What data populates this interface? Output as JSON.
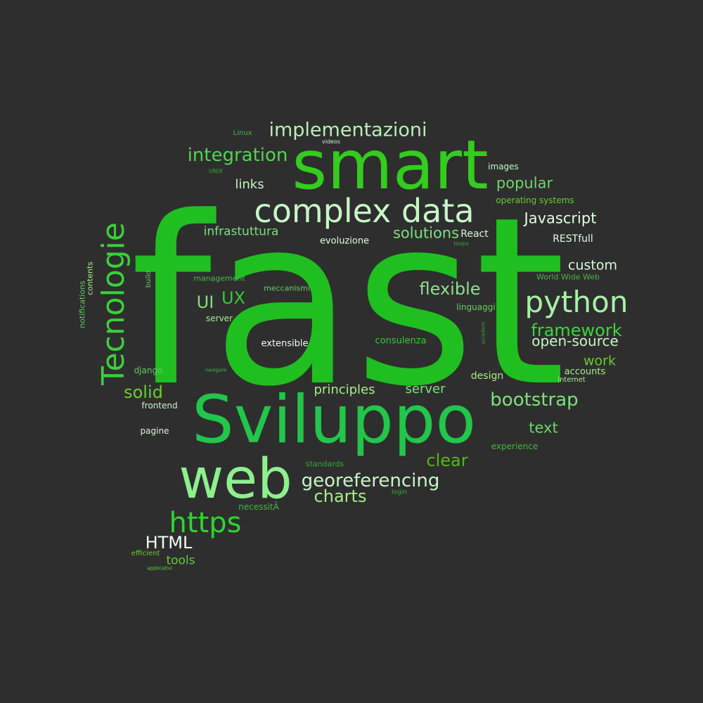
{
  "colors": {
    "background": "#2e2e2e",
    "palette": [
      "#1fbf1f",
      "#2ecc2e",
      "#7ee07e",
      "#c8f5c8",
      "#66cc66",
      "#44b844",
      "#a8ec8a"
    ]
  },
  "words": [
    {
      "text": "fast",
      "color": "#1fbf1f"
    },
    {
      "text": "smart",
      "color": "#33cc1f"
    },
    {
      "text": "Sviluppo",
      "color": "#21c64a"
    },
    {
      "text": "web",
      "color": "#8df08d"
    },
    {
      "text": "complex data",
      "color": "#c8f5c8"
    },
    {
      "text": "Tecnologie",
      "color": "#3ad13a"
    },
    {
      "text": "python",
      "color": "#a8f0a8"
    },
    {
      "text": "https",
      "color": "#2cd62c"
    },
    {
      "text": "implementazioni",
      "color": "#b6f0b6"
    },
    {
      "text": "integration",
      "color": "#4ed64e"
    },
    {
      "text": "bootstrap",
      "color": "#7ee07e"
    },
    {
      "text": "georeferencing",
      "color": "#c8f5c8"
    },
    {
      "text": "framework",
      "color": "#3cd63c"
    },
    {
      "text": "open-source",
      "color": "#c8f5c8"
    },
    {
      "text": "flexible",
      "color": "#8fe08f"
    },
    {
      "text": "HTML",
      "color": "#f0fff0"
    },
    {
      "text": "clear",
      "color": "#55b812"
    },
    {
      "text": "charts",
      "color": "#a8ec8a"
    },
    {
      "text": "solid",
      "color": "#6cce2f"
    },
    {
      "text": "solutions",
      "color": "#7ee07e"
    },
    {
      "text": "popular",
      "color": "#6cd66c"
    },
    {
      "text": "Javascript",
      "color": "#e0ffe0"
    },
    {
      "text": "custom",
      "color": "#d8f8d8"
    },
    {
      "text": "principles",
      "color": "#a8ec8a"
    },
    {
      "text": "server",
      "color": "#7ee07e"
    },
    {
      "text": "text",
      "color": "#6cd66c"
    },
    {
      "text": "work",
      "color": "#66cc33"
    },
    {
      "text": "UI",
      "color": "#7ee07e"
    },
    {
      "text": "UX",
      "color": "#33cc33"
    },
    {
      "text": "links",
      "color": "#c8f5c8"
    },
    {
      "text": "infrastuttura",
      "color": "#7ee07e"
    },
    {
      "text": "tools",
      "color": "#66cc33"
    },
    {
      "text": "design",
      "color": "#a8ec8a"
    },
    {
      "text": "accounts",
      "color": "#a8ec8a"
    },
    {
      "text": "RESTfull",
      "color": "#e0ffe0"
    },
    {
      "text": "React",
      "color": "#d8f8d8"
    },
    {
      "text": "evoluzione",
      "color": "#e0ffe0"
    },
    {
      "text": "extensible",
      "color": "#f0fff0"
    },
    {
      "text": "consulenza",
      "color": "#33cc33"
    },
    {
      "text": "linguaggi",
      "color": "#66cc66"
    },
    {
      "text": "meccanismi",
      "color": "#66cc66"
    },
    {
      "text": "server",
      "color": "#a8ec8a"
    },
    {
      "text": "management",
      "color": "#44b844"
    },
    {
      "text": "operating systems",
      "color": "#66cc33"
    },
    {
      "text": "images",
      "color": "#c8f5c8"
    },
    {
      "text": "World Wide Web",
      "color": "#44b844"
    },
    {
      "text": "experience",
      "color": "#44b844"
    },
    {
      "text": "standards",
      "color": "#33aa33"
    },
    {
      "text": "necessitÃ",
      "color": "#44b844"
    },
    {
      "text": "frontend",
      "color": "#c8f5c8"
    },
    {
      "text": "django",
      "color": "#66cc66"
    },
    {
      "text": "pagine",
      "color": "#d8f8d8"
    },
    {
      "text": "efficient",
      "color": "#66cc33"
    },
    {
      "text": "Internet",
      "color": "#a8ec8a"
    },
    {
      "text": "contents",
      "color": "#a8ec8a"
    },
    {
      "text": "notifications",
      "color": "#66cc66"
    },
    {
      "text": "build",
      "color": "#66cc66"
    },
    {
      "text": "Linux",
      "color": "#44b844"
    },
    {
      "text": "videos",
      "color": "#c8f5c8"
    },
    {
      "text": "UNIX",
      "color": "#2eaa2e"
    },
    {
      "text": "loops",
      "color": "#2eaa2e"
    },
    {
      "text": "login",
      "color": "#33aa33"
    },
    {
      "text": "navigare",
      "color": "#44b844"
    },
    {
      "text": "accedere",
      "color": "#2eaa2e"
    },
    {
      "text": "applicativi",
      "color": "#66cc33"
    }
  ]
}
